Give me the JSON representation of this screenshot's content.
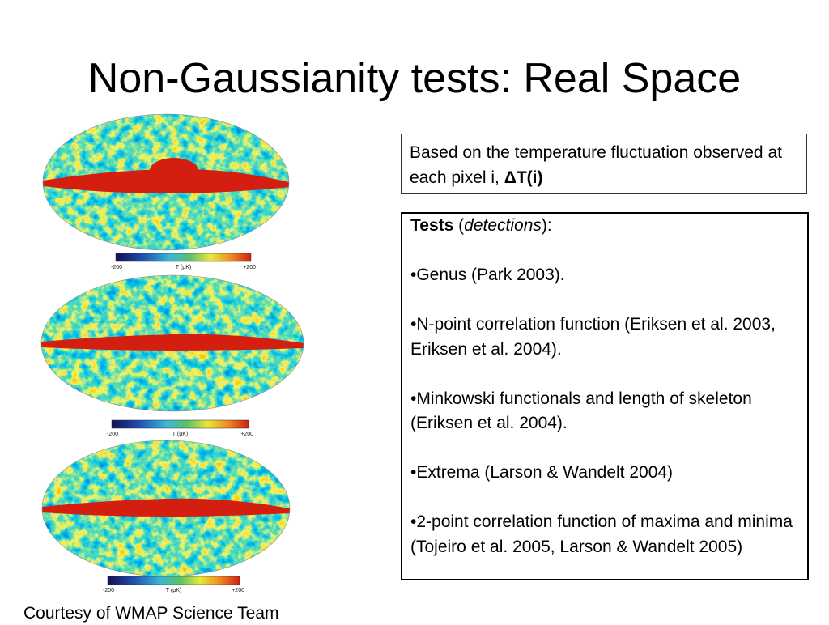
{
  "title": "Non-Gaussianity tests: Real Space",
  "maps": [
    {
      "min_label": "-200",
      "axis_label": "T (μK)",
      "max_label": "+200"
    },
    {
      "min_label": "-200",
      "axis_label": "T (μK)",
      "max_label": "+200"
    },
    {
      "min_label": "-200",
      "axis_label": "T (μK)",
      "max_label": "+200"
    }
  ],
  "info_box": {
    "text": "Based on the temperature fluctuation observed at each pixel i, ",
    "bold": "ΔT(i)"
  },
  "tests_box": {
    "heading": {
      "bold": "Tests",
      "open": " (",
      "italic": "detections",
      "close": "):"
    },
    "items": [
      "•Genus (Park 2003).",
      "•N-point correlation function (Eriksen et al.  2003, Eriksen et al. 2004).",
      "•Minkowski functionals and length of skeleton (Eriksen et al. 2004).",
      "•Extrema (Larson & Wandelt 2004)",
      "•2-point correlation function of maxima and minima (Tojeiro et al. 2005, Larson & Wandelt 2005)"
    ]
  },
  "caption": "Courtesy of WMAP Science Team"
}
